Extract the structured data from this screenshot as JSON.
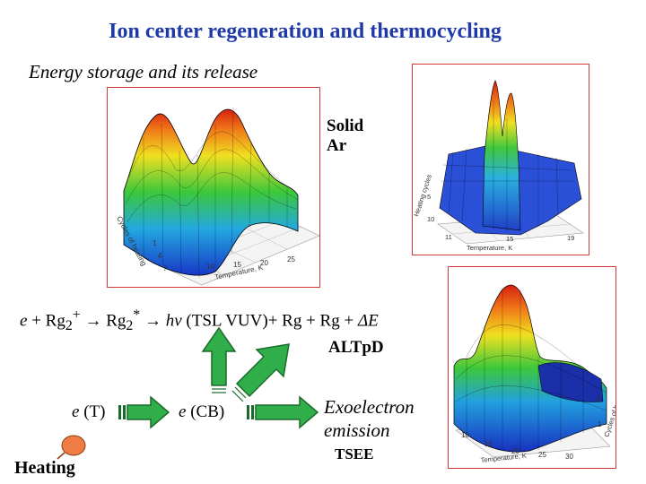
{
  "title": "Ion center regeneration and thermocycling",
  "subtitle": "Energy storage and its release",
  "panels": {
    "left": {
      "label": "Solid Ar",
      "depth_axis": "Cycles of heating",
      "depth_ticks": [
        "1",
        "4",
        "7"
      ],
      "x_axis": "Temperature, K",
      "x_ticks": [
        "10",
        "15",
        "20",
        "25"
      ]
    },
    "top_right": {
      "depth_axis": "Heating cycles",
      "depth_ticks": [
        "5",
        "10"
      ],
      "x_axis": "Temperature, K",
      "x_ticks": [
        "11",
        "15",
        "19"
      ]
    },
    "bottom_right": {
      "label": "ALTpD",
      "depth_axis": "Cycles of heating",
      "depth_ticks": [
        "3",
        "1"
      ],
      "x_axis": "Temperature, K",
      "x_ticks": [
        "10",
        "15",
        "20",
        "25",
        "30"
      ]
    }
  },
  "equation": {
    "e": "e",
    "plus1": " + Rg",
    "sub1": "2",
    "sup1": "+",
    "arrow1": " → Rg",
    "sub2": "2",
    "sup2": "*",
    "arrow2": " → ",
    "hv": "hν",
    "rest": " (TSL VUV)+ Rg + Rg + ",
    "delta": "ΔE"
  },
  "nodes": {
    "eT_e": "e",
    "eT_rest": " (T)",
    "eCB_e": "e",
    "eCB_rest": " (CB)",
    "exo1": "Exoelectron",
    "exo2": "emission",
    "tsee": "TSEE",
    "heating": "Heating"
  },
  "colors": {
    "title": "#1f3aa8",
    "panel_border": "#d23a3a",
    "arrow_fill": "#2fae4a",
    "arrow_stroke": "#1b6b2c",
    "heating_fill": "#ef7c45"
  }
}
